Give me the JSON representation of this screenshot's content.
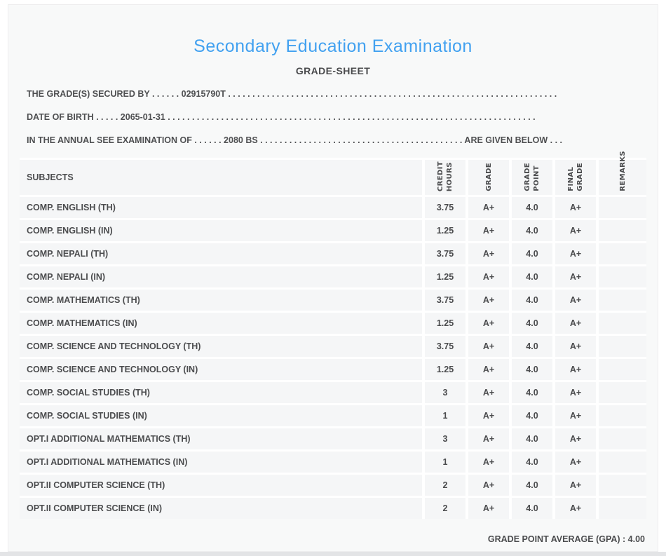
{
  "colors": {
    "accent_blue": "#42a1f0",
    "text_dark": "#4b4c4e",
    "card_background": "#f8f9f9",
    "cell_background": "#f5f6f7",
    "separator_white": "#ffffff",
    "bottom_strip": "#e3e4e6"
  },
  "header": {
    "title": "Secondary Education Examination",
    "subtitle": "GRADE-SHEET"
  },
  "info": {
    "line1": "THE GRADE(S) SECURED BY . . . . . . 02915790T . . . . . . . . . . . . . . . . . . . . . . . . . . . . . . . . . . . . . . . . . . . . . . . . . . . . . . . . . . . . . . . . . . . .",
    "line2": "DATE OF BIRTH . . . . . 2065-01-31 . . . . . . . . . . . . . . . . . . . . . . . . . . . . . . . . . . . . . . . . . . . . . . . . . . . . . . . . . . . . . . . . . . . . . . . . . . . .",
    "line3": "IN THE ANNUAL SEE EXAMINATION OF . . . . . . 2080 BS . . . . . . . . . . . . . . . . . . . . . . . . . . . . . . . . . . . . . . . . . . ARE GIVEN BELOW . . ."
  },
  "table": {
    "columns": [
      "SUBJECTS",
      "CREDIT\nHOURS",
      "GRADE",
      "GRADE\nPOINT",
      "FINAL\nGRADE",
      "REMARKS"
    ],
    "rows": [
      {
        "subject": "COMP. ENGLISH (TH)",
        "credit_hours": "3.75",
        "grade": "A+",
        "grade_point": "4.0",
        "final_grade": "A+",
        "remarks": ""
      },
      {
        "subject": "COMP. ENGLISH (IN)",
        "credit_hours": "1.25",
        "grade": "A+",
        "grade_point": "4.0",
        "final_grade": "A+",
        "remarks": ""
      },
      {
        "subject": "COMP. NEPALI (TH)",
        "credit_hours": "3.75",
        "grade": "A+",
        "grade_point": "4.0",
        "final_grade": "A+",
        "remarks": ""
      },
      {
        "subject": "COMP. NEPALI (IN)",
        "credit_hours": "1.25",
        "grade": "A+",
        "grade_point": "4.0",
        "final_grade": "A+",
        "remarks": ""
      },
      {
        "subject": "COMP. MATHEMATICS (TH)",
        "credit_hours": "3.75",
        "grade": "A+",
        "grade_point": "4.0",
        "final_grade": "A+",
        "remarks": ""
      },
      {
        "subject": "COMP. MATHEMATICS (IN)",
        "credit_hours": "1.25",
        "grade": "A+",
        "grade_point": "4.0",
        "final_grade": "A+",
        "remarks": ""
      },
      {
        "subject": "COMP. SCIENCE AND TECHNOLOGY (TH)",
        "credit_hours": "3.75",
        "grade": "A+",
        "grade_point": "4.0",
        "final_grade": "A+",
        "remarks": ""
      },
      {
        "subject": "COMP. SCIENCE AND TECHNOLOGY (IN)",
        "credit_hours": "1.25",
        "grade": "A+",
        "grade_point": "4.0",
        "final_grade": "A+",
        "remarks": ""
      },
      {
        "subject": "COMP. SOCIAL STUDIES (TH)",
        "credit_hours": "3",
        "grade": "A+",
        "grade_point": "4.0",
        "final_grade": "A+",
        "remarks": ""
      },
      {
        "subject": "COMP. SOCIAL STUDIES (IN)",
        "credit_hours": "1",
        "grade": "A+",
        "grade_point": "4.0",
        "final_grade": "A+",
        "remarks": ""
      },
      {
        "subject": "OPT.I ADDITIONAL MATHEMATICS (TH)",
        "credit_hours": "3",
        "grade": "A+",
        "grade_point": "4.0",
        "final_grade": "A+",
        "remarks": ""
      },
      {
        "subject": "OPT.I ADDITIONAL MATHEMATICS (IN)",
        "credit_hours": "1",
        "grade": "A+",
        "grade_point": "4.0",
        "final_grade": "A+",
        "remarks": ""
      },
      {
        "subject": "OPT.II COMPUTER SCIENCE (TH)",
        "credit_hours": "2",
        "grade": "A+",
        "grade_point": "4.0",
        "final_grade": "A+",
        "remarks": ""
      },
      {
        "subject": "OPT.II COMPUTER SCIENCE (IN)",
        "credit_hours": "2",
        "grade": "A+",
        "grade_point": "4.0",
        "final_grade": "A+",
        "remarks": ""
      }
    ]
  },
  "footer": {
    "gpa_label": "GRADE POINT AVERAGE (GPA) : 4.00"
  }
}
